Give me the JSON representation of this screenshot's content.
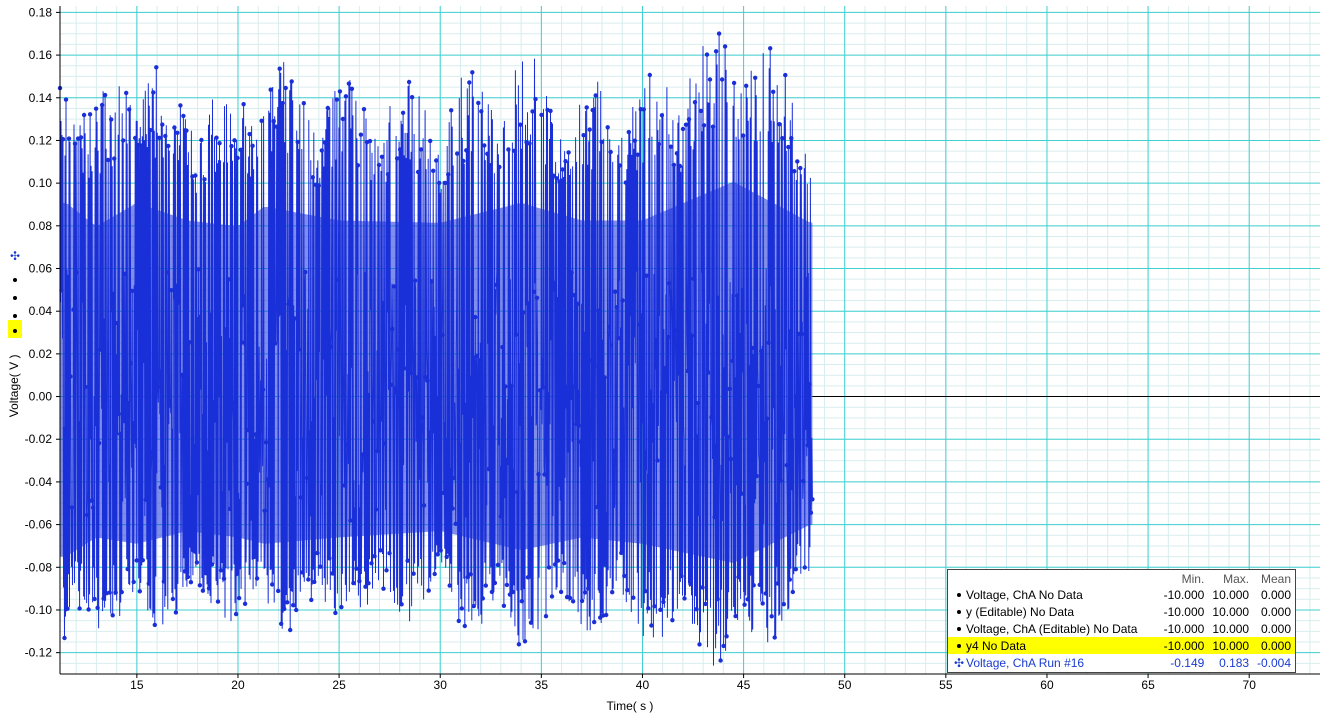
{
  "chart_data": {
    "type": "line",
    "xlabel": "Time( s )",
    "ylabel": "Voltage( V )",
    "xlim": [
      11.2,
      73.5
    ],
    "ylim": [
      -0.13,
      0.183
    ],
    "x_ticks": [
      15,
      20,
      25,
      30,
      35,
      40,
      45,
      50,
      55,
      60,
      65,
      70
    ],
    "y_ticks": [
      -0.12,
      -0.1,
      -0.08,
      -0.06,
      -0.04,
      -0.02,
      0.0,
      0.02,
      0.04,
      0.06,
      0.08,
      0.1,
      0.12,
      0.14,
      0.16,
      0.18
    ],
    "y_tick_labels": [
      "-0.12",
      "-0.10",
      "-0.08",
      "-0.06",
      "-0.04",
      "-0.02",
      "0.00",
      "0.02",
      "0.04",
      "0.06",
      "0.08",
      "0.10",
      "0.12",
      "0.14",
      "0.16",
      "0.18"
    ],
    "grid": true,
    "zero_line": true,
    "legend_position": "bottom-right",
    "series": [
      {
        "name": "Voltage, ChA Run #16",
        "color": "#1a2fd8",
        "x_range": [
          11.2,
          48.4
        ],
        "min": -0.149,
        "max": 0.183,
        "mean": -0.004,
        "envelope_samples": [
          {
            "x": 11.5,
            "upper": 0.165,
            "lower": -0.125
          },
          {
            "x": 13,
            "upper": 0.145,
            "lower": -0.11
          },
          {
            "x": 15,
            "upper": 0.165,
            "lower": -0.115
          },
          {
            "x": 17.5,
            "upper": 0.15,
            "lower": -0.105
          },
          {
            "x": 20,
            "upper": 0.145,
            "lower": -0.11
          },
          {
            "x": 21.3,
            "upper": 0.162,
            "lower": -0.115
          },
          {
            "x": 25,
            "upper": 0.15,
            "lower": -0.11
          },
          {
            "x": 30,
            "upper": 0.148,
            "lower": -0.105
          },
          {
            "x": 34,
            "upper": 0.165,
            "lower": -0.12
          },
          {
            "x": 37,
            "upper": 0.15,
            "lower": -0.11
          },
          {
            "x": 40,
            "upper": 0.15,
            "lower": -0.115
          },
          {
            "x": 44.5,
            "upper": 0.183,
            "lower": -0.13
          },
          {
            "x": 48.3,
            "upper": 0.148,
            "lower": -0.1
          }
        ]
      }
    ]
  },
  "legend": {
    "headers": {
      "min": "Min.",
      "max": "Max.",
      "mean": "Mean"
    },
    "rows": [
      {
        "label": "Voltage, ChA No Data",
        "min": "-10.000",
        "max": "10.000",
        "mean": "0.000",
        "icon": "dot-icon",
        "highlight": false
      },
      {
        "label": "y (Editable) No Data",
        "min": "-10.000",
        "max": "10.000",
        "mean": "0.000",
        "icon": "dot-icon",
        "highlight": false
      },
      {
        "label": "Voltage, ChA (Editable) No Data",
        "min": "-10.000",
        "max": "10.000",
        "mean": "0.000",
        "icon": "dot-icon",
        "highlight": false
      },
      {
        "label": "y4 No Data",
        "min": "-10.000",
        "max": "10.000",
        "mean": "0.000",
        "icon": "dot-icon",
        "highlight": true,
        "highlight_color": "#ffff00"
      },
      {
        "label": "Voltage, ChA Run #16",
        "min": "-0.149",
        "max": "0.183",
        "mean": "-0.004",
        "icon": "crosshair-icon",
        "highlight": false,
        "color": "#1a3bd0"
      }
    ]
  },
  "colors": {
    "major_grid": "#40d0d0",
    "minor_grid": "#d8eded",
    "data": "#1a2fd8",
    "highlight": "#ffff00"
  }
}
